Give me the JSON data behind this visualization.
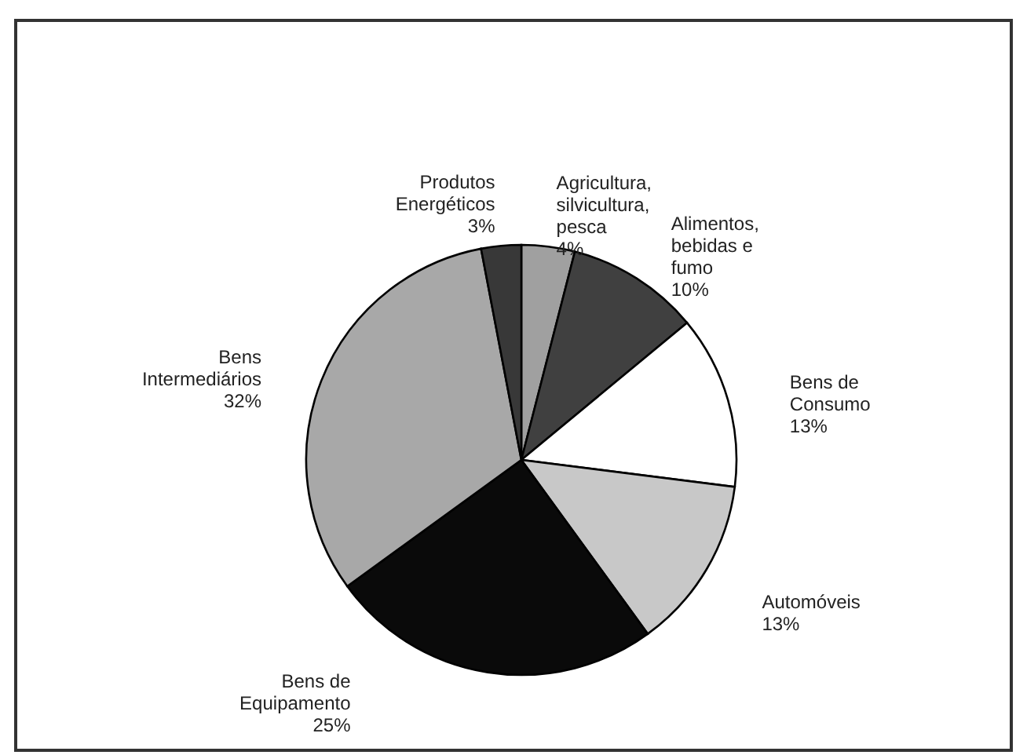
{
  "chart_data": {
    "type": "pie",
    "categories": [
      "Agricultura,\nsilvicultura,\npesca",
      "Alimentos,\nbebidas e\nfumo",
      "Bens de\nConsumo",
      "Automóveis",
      "Bens de\nEquipamento",
      "Bens\nIntermediários",
      "Produtos\nEnergéticos"
    ],
    "values": [
      4,
      10,
      13,
      13,
      25,
      32,
      3
    ],
    "colors": [
      "#a0a0a0",
      "#404040",
      "#ffffff",
      "#c8c8c8",
      "#0a0a0a",
      "#a8a8a8",
      "#383838"
    ],
    "value_labels": [
      "4%",
      "10%",
      "13%",
      "13%",
      "25%",
      "32%",
      "3%"
    ]
  }
}
